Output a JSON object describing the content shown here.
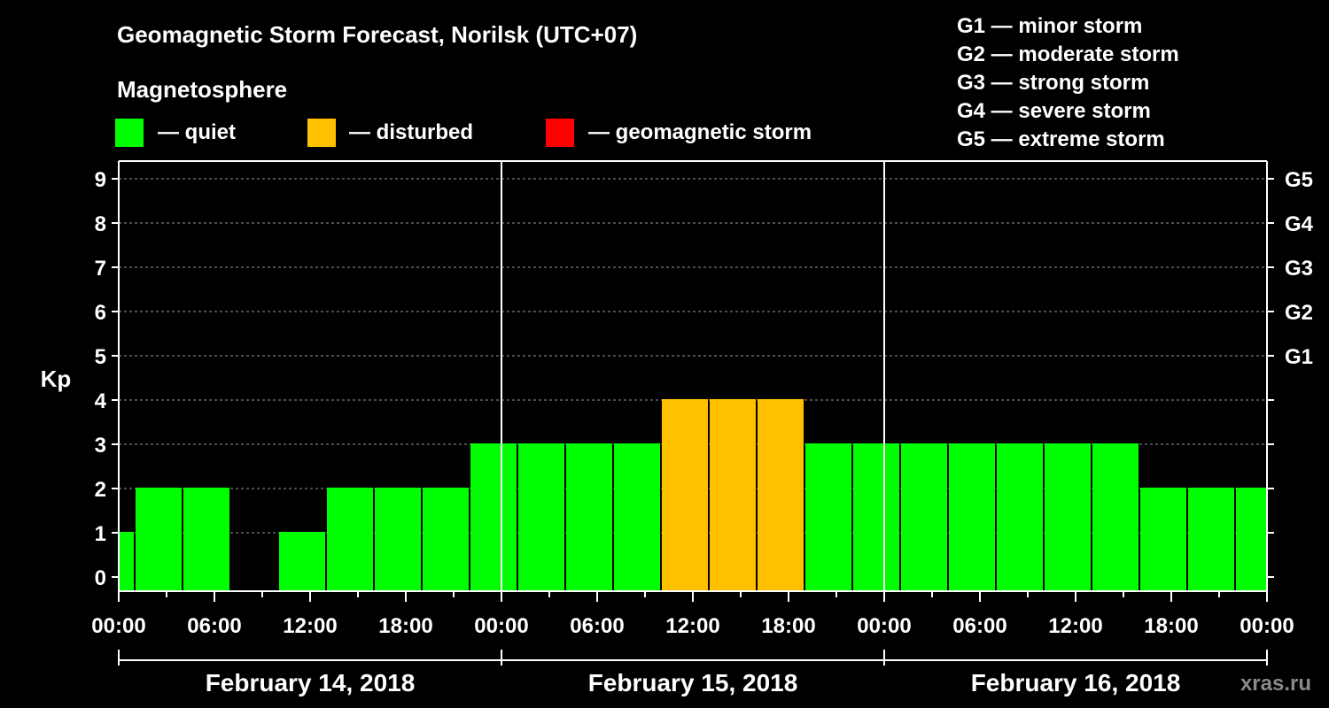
{
  "chart_data": {
    "type": "bar",
    "title": "Geomagnetic Storm Forecast, Norilsk (UTC+07)",
    "legend_title": "Magnetosphere",
    "legend": [
      {
        "key": "quiet",
        "label": "— quiet",
        "color": "#00ff00"
      },
      {
        "key": "disturbed",
        "label": "— disturbed",
        "color": "#ffc000"
      },
      {
        "key": "storm",
        "label": "— geomagnetic storm",
        "color": "#ff0000"
      }
    ],
    "g_scale": [
      "G1 — minor storm",
      "G2 — moderate storm",
      "G3 — strong storm",
      "G4 — severe storm",
      "G5 — extreme storm"
    ],
    "ylabel": "Kp",
    "ylim": [
      0,
      9
    ],
    "yticks": [
      "0",
      "1",
      "2",
      "3",
      "4",
      "5",
      "6",
      "7",
      "8",
      "9"
    ],
    "right_ticks": [
      {
        "value": 5,
        "label": "G1"
      },
      {
        "value": 6,
        "label": "G2"
      },
      {
        "value": 7,
        "label": "G3"
      },
      {
        "value": 8,
        "label": "G4"
      },
      {
        "value": 9,
        "label": "G5"
      }
    ],
    "x_unit": "hours",
    "xlim_hours": [
      0,
      72
    ],
    "xtick_labels": [
      "00:00",
      "06:00",
      "12:00",
      "18:00",
      "00:00",
      "06:00",
      "12:00",
      "18:00",
      "00:00",
      "06:00",
      "12:00",
      "18:00",
      "00:00"
    ],
    "dates": [
      "February 14, 2018",
      "February 15, 2018",
      "February 16, 2018"
    ],
    "bars": [
      {
        "start": 0,
        "end": 1,
        "kp": 1,
        "level": "quiet"
      },
      {
        "start": 1,
        "end": 4,
        "kp": 2,
        "level": "quiet"
      },
      {
        "start": 4,
        "end": 7,
        "kp": 2,
        "level": "quiet"
      },
      {
        "start": 7,
        "end": 10,
        "kp": 0,
        "level": "quiet"
      },
      {
        "start": 10,
        "end": 13,
        "kp": 1,
        "level": "quiet"
      },
      {
        "start": 13,
        "end": 16,
        "kp": 2,
        "level": "quiet"
      },
      {
        "start": 16,
        "end": 19,
        "kp": 2,
        "level": "quiet"
      },
      {
        "start": 19,
        "end": 22,
        "kp": 2,
        "level": "quiet"
      },
      {
        "start": 22,
        "end": 25,
        "kp": 3,
        "level": "quiet"
      },
      {
        "start": 25,
        "end": 28,
        "kp": 3,
        "level": "quiet"
      },
      {
        "start": 28,
        "end": 31,
        "kp": 3,
        "level": "quiet"
      },
      {
        "start": 31,
        "end": 34,
        "kp": 3,
        "level": "quiet"
      },
      {
        "start": 34,
        "end": 37,
        "kp": 4,
        "level": "disturbed"
      },
      {
        "start": 37,
        "end": 40,
        "kp": 4,
        "level": "disturbed"
      },
      {
        "start": 40,
        "end": 43,
        "kp": 4,
        "level": "disturbed"
      },
      {
        "start": 43,
        "end": 46,
        "kp": 3,
        "level": "quiet"
      },
      {
        "start": 46,
        "end": 49,
        "kp": 3,
        "level": "quiet"
      },
      {
        "start": 49,
        "end": 52,
        "kp": 3,
        "level": "quiet"
      },
      {
        "start": 52,
        "end": 55,
        "kp": 3,
        "level": "quiet"
      },
      {
        "start": 55,
        "end": 58,
        "kp": 3,
        "level": "quiet"
      },
      {
        "start": 58,
        "end": 61,
        "kp": 3,
        "level": "quiet"
      },
      {
        "start": 61,
        "end": 64,
        "kp": 3,
        "level": "quiet"
      },
      {
        "start": 64,
        "end": 67,
        "kp": 2,
        "level": "quiet"
      },
      {
        "start": 67,
        "end": 70,
        "kp": 2,
        "level": "quiet"
      },
      {
        "start": 70,
        "end": 72,
        "kp": 2,
        "level": "quiet"
      }
    ],
    "grid": true,
    "watermark": "xras.ru"
  }
}
